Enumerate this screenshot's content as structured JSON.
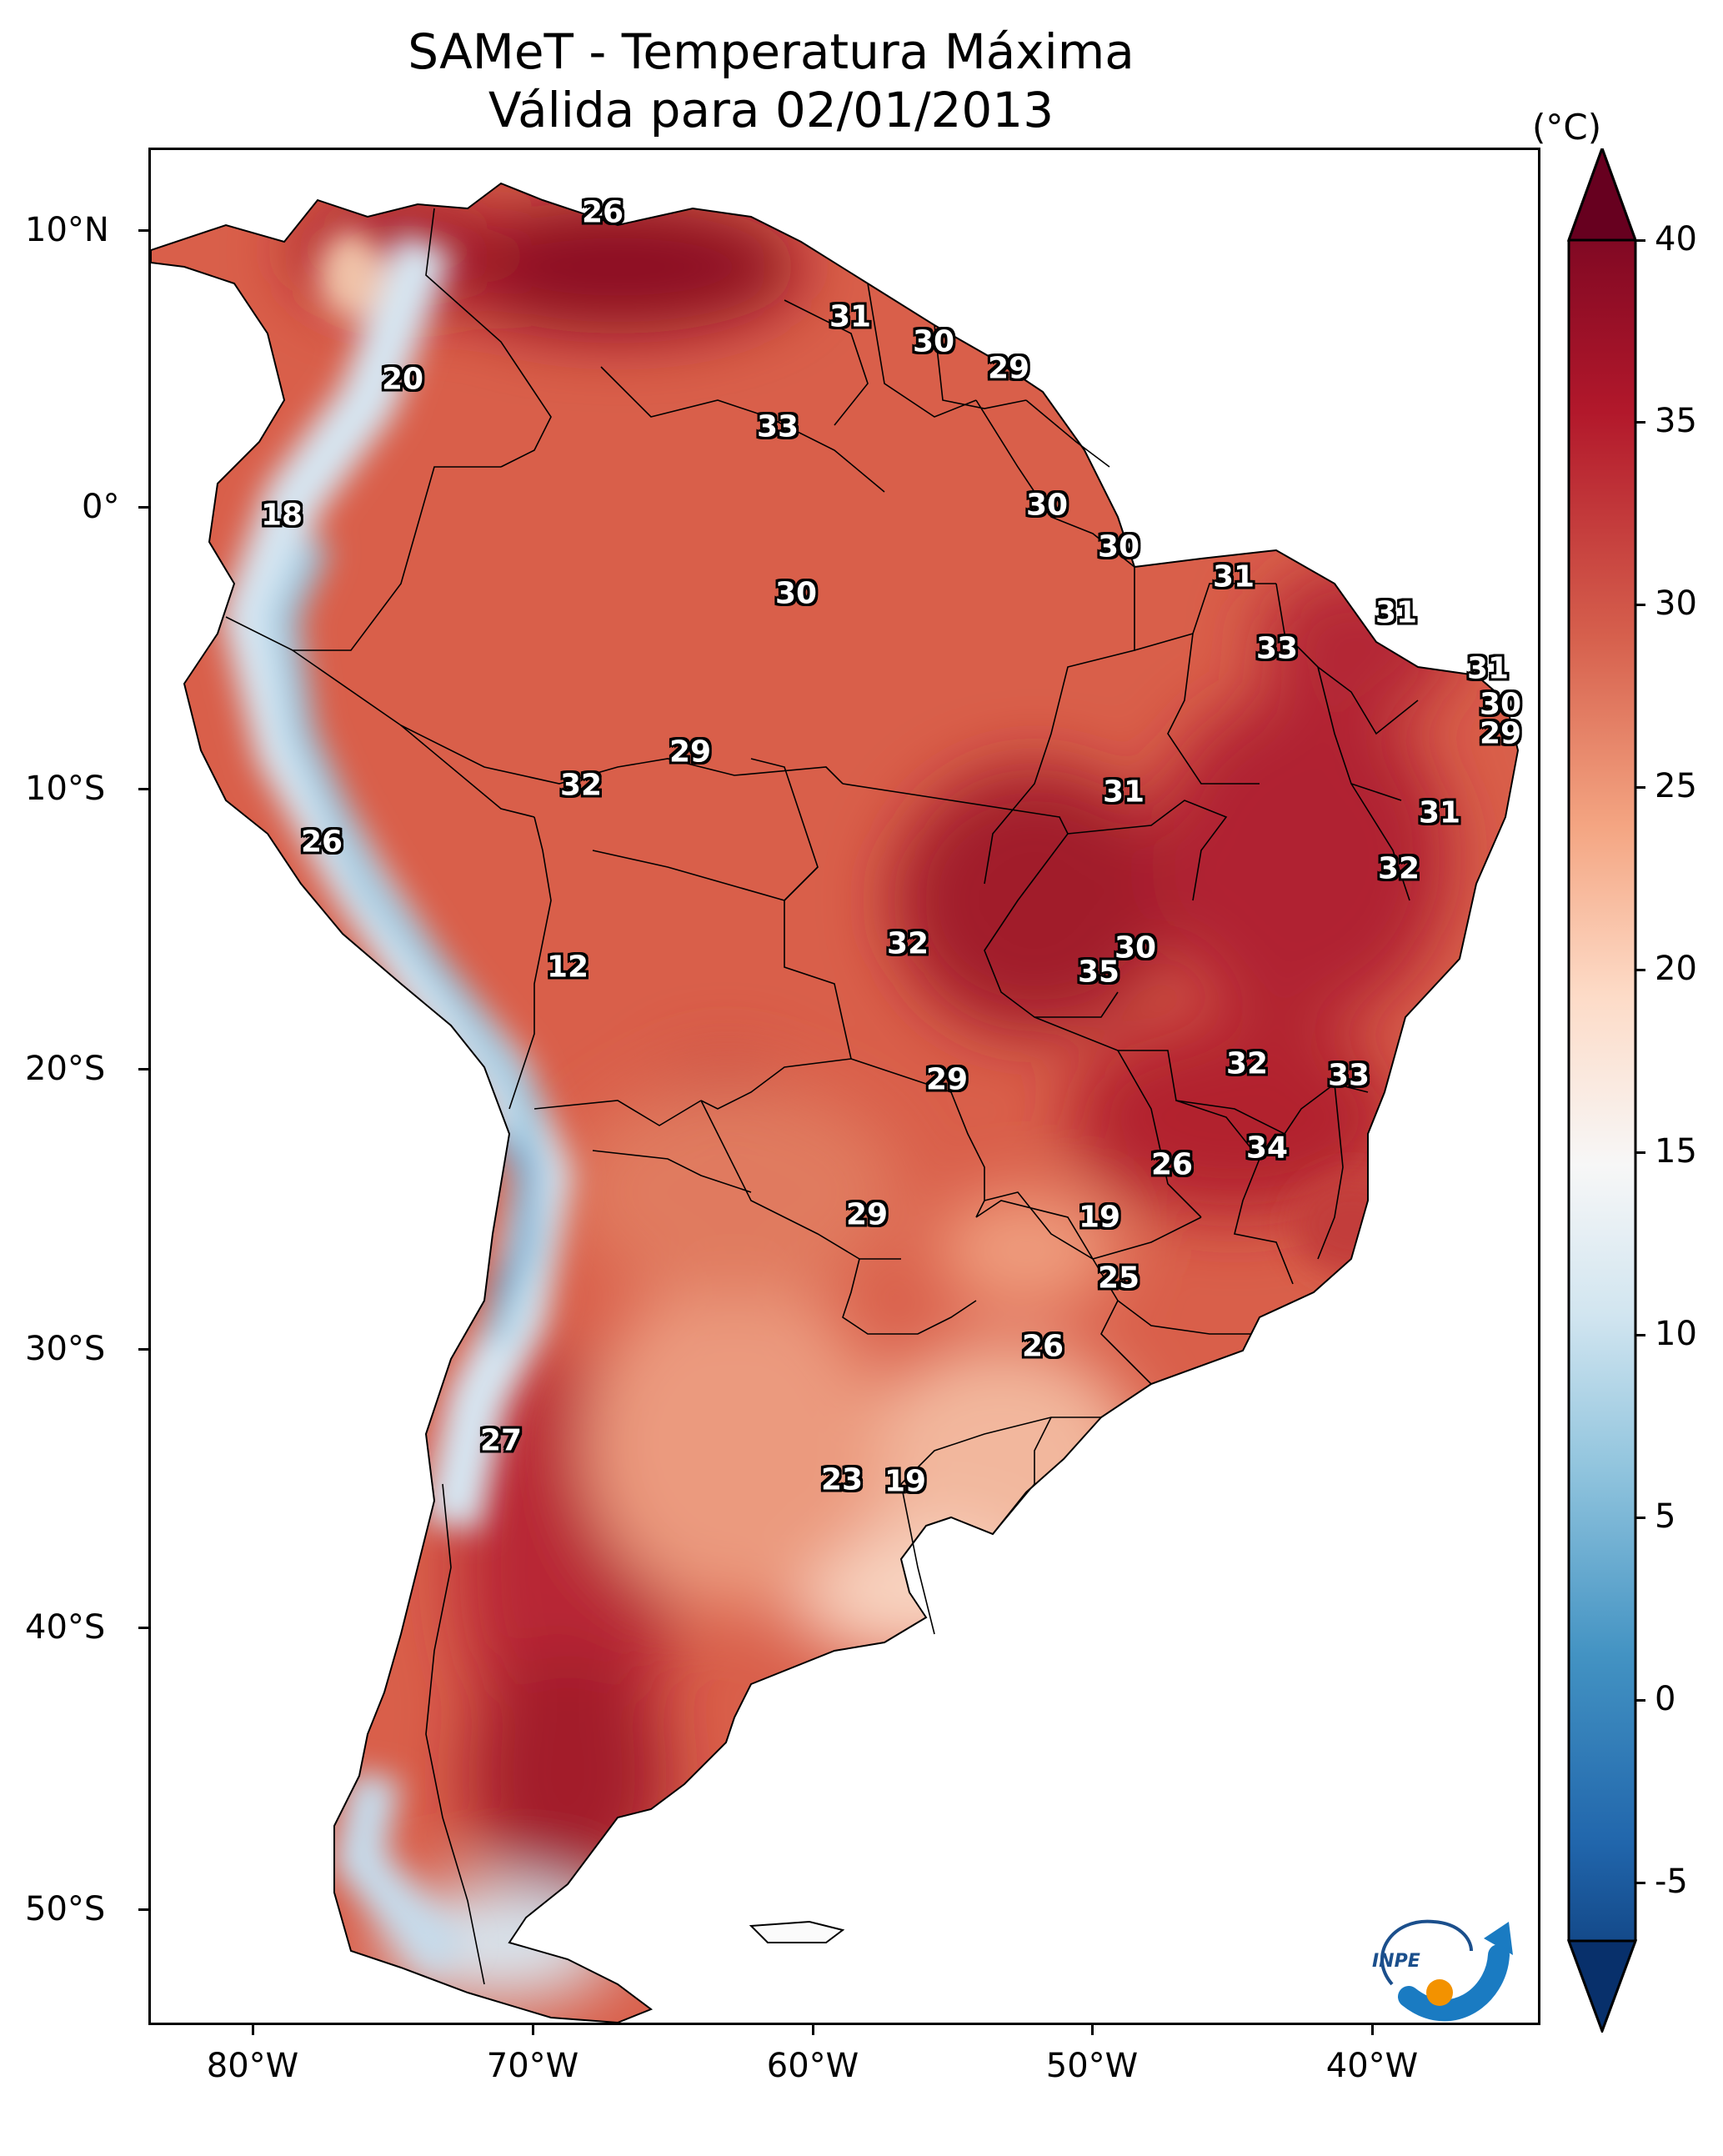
{
  "title": {
    "line1": "SAMeT - Temperatura Máxima",
    "line2": "Válida para 02/01/2013"
  },
  "axes": {
    "lat_ticks": [
      "10°N",
      "0°",
      "10°S",
      "20°S",
      "30°S",
      "40°S",
      "50°S"
    ],
    "lon_ticks": [
      "80°W",
      "70°W",
      "60°W",
      "50°W",
      "40°W"
    ]
  },
  "colorbar": {
    "unit": "(°C)",
    "labels": [
      "40",
      "35",
      "30",
      "25",
      "20",
      "15",
      "10",
      "5",
      "0",
      "-5"
    ],
    "min": -5,
    "max": 40,
    "colormap": "RdBu_r",
    "colors": [
      "#08306b",
      "#2166ac",
      "#4393c3",
      "#92c5de",
      "#d1e5f0",
      "#f7f7f7",
      "#fddbc7",
      "#f4a582",
      "#d6604d",
      "#b2182b",
      "#67001f"
    ]
  },
  "contour_labels": [
    "26",
    "31",
    "30",
    "29",
    "20",
    "33",
    "18",
    "30",
    "30",
    "31",
    "31",
    "30",
    "33",
    "31",
    "30",
    "29",
    "29",
    "32",
    "31",
    "31",
    "26",
    "32",
    "12",
    "32",
    "30",
    "35",
    "32",
    "33",
    "29",
    "34",
    "26",
    "29",
    "19",
    "25",
    "26",
    "27",
    "23",
    "19"
  ],
  "logo": {
    "text": "INPE"
  }
}
